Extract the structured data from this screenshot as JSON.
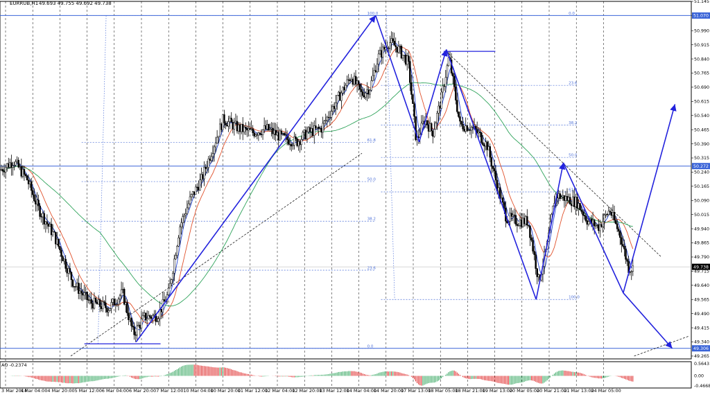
{
  "header": {
    "symbol": "EURRUB,H1",
    "quote": "49.693 49.755 49.692 49.738"
  },
  "osc": {
    "label": "AO -0.2374",
    "ticks": [
      {
        "label": "0.5643",
        "v": 0.5643
      },
      {
        "label": "0.00",
        "v": 0
      },
      {
        "label": "-0.4668",
        "v": -0.4668
      }
    ]
  },
  "colors": {
    "bg": "#ffffff",
    "candle": "#000000",
    "grid": "#000000",
    "ma_fast": "#1f3fcf",
    "ma_mid": "#e0502a",
    "ma_slow": "#2ea35a",
    "drawing": "#2222dd",
    "fib": "#4a6ed8",
    "level_box": "#3a64d8",
    "price_box": "#000000"
  },
  "chart_data": {
    "type": "candlestick",
    "symbol": "EURRUB",
    "timeframe": "H1",
    "ylim": [
      49.25,
      51.14
    ],
    "y_ticks": [
      51.145,
      51.07,
      50.99,
      50.915,
      50.84,
      50.765,
      50.69,
      50.615,
      50.54,
      50.465,
      50.39,
      50.315,
      50.24,
      50.165,
      50.09,
      50.015,
      49.94,
      49.865,
      49.79,
      49.715,
      49.64,
      49.565,
      49.49,
      49.415,
      49.34,
      49.265
    ],
    "x_ticks": [
      "3 Mar 2014",
      "4 Mar 04:00",
      "4 Mar 20:00",
      "5 Mar 12:00",
      "6 Mar 04:00",
      "6 Mar 20:00",
      "7 Mar 12:00",
      "10 Mar 04:00",
      "10 Mar 20:00",
      "11 Mar 12:00",
      "12 Mar 04:00",
      "12 Mar 20:00",
      "13 Mar 12:00",
      "14 Mar 04:00",
      "14 Mar 20:00",
      "17 Mar 13:00",
      "18 Mar 05:00",
      "18 Mar 21:00",
      "19 Mar 13:00",
      "20 Mar 05:00",
      "20 Mar 21:00",
      "21 Mar 13:00",
      "24 Mar 05:00"
    ],
    "last_price": 49.738,
    "highlighted_levels": [
      51.07,
      50.272,
      49.306
    ],
    "price_path": [
      {
        "x": 0,
        "y": 50.25
      },
      {
        "x": 0.5,
        "y": 50.3
      },
      {
        "x": 1,
        "y": 50.2
      },
      {
        "x": 1.4,
        "y": 50.05
      },
      {
        "x": 2,
        "y": 49.9
      },
      {
        "x": 2.7,
        "y": 49.65
      },
      {
        "x": 3.3,
        "y": 49.55
      },
      {
        "x": 4,
        "y": 49.52
      },
      {
        "x": 4.5,
        "y": 49.6
      },
      {
        "x": 4.9,
        "y": 49.38
      },
      {
        "x": 5.3,
        "y": 49.47
      },
      {
        "x": 5.8,
        "y": 49.48
      },
      {
        "x": 6.2,
        "y": 49.6
      },
      {
        "x": 6.6,
        "y": 49.95
      },
      {
        "x": 7,
        "y": 50.1
      },
      {
        "x": 7.4,
        "y": 50.2
      },
      {
        "x": 7.8,
        "y": 50.36
      },
      {
        "x": 8.2,
        "y": 50.52
      },
      {
        "x": 8.8,
        "y": 50.47
      },
      {
        "x": 9.3,
        "y": 50.45
      },
      {
        "x": 9.8,
        "y": 50.47
      },
      {
        "x": 10.4,
        "y": 50.42
      },
      {
        "x": 10.9,
        "y": 50.4
      },
      {
        "x": 11.3,
        "y": 50.45
      },
      {
        "x": 11.8,
        "y": 50.47
      },
      {
        "x": 12.3,
        "y": 50.6
      },
      {
        "x": 12.9,
        "y": 50.75
      },
      {
        "x": 13.3,
        "y": 50.65
      },
      {
        "x": 13.6,
        "y": 50.69
      },
      {
        "x": 13.9,
        "y": 50.85
      },
      {
        "x": 14.3,
        "y": 50.93
      },
      {
        "x": 14.6,
        "y": 50.9
      },
      {
        "x": 15,
        "y": 50.82
      },
      {
        "x": 15.3,
        "y": 50.4
      },
      {
        "x": 15.6,
        "y": 50.52
      },
      {
        "x": 15.9,
        "y": 50.45
      },
      {
        "x": 16.2,
        "y": 50.62
      },
      {
        "x": 16.5,
        "y": 50.85
      },
      {
        "x": 16.9,
        "y": 50.49
      },
      {
        "x": 17.3,
        "y": 50.48
      },
      {
        "x": 17.6,
        "y": 50.44
      },
      {
        "x": 17.9,
        "y": 50.38
      },
      {
        "x": 18.3,
        "y": 50.15
      },
      {
        "x": 18.6,
        "y": 50.0
      },
      {
        "x": 19,
        "y": 49.98
      },
      {
        "x": 19.4,
        "y": 49.98
      },
      {
        "x": 19.8,
        "y": 49.66
      },
      {
        "x": 20.1,
        "y": 49.85
      },
      {
        "x": 20.4,
        "y": 50.12
      },
      {
        "x": 20.8,
        "y": 50.1
      },
      {
        "x": 21.2,
        "y": 50.08
      },
      {
        "x": 21.6,
        "y": 49.98
      },
      {
        "x": 22,
        "y": 49.95
      },
      {
        "x": 22.4,
        "y": 50.04
      },
      {
        "x": 22.8,
        "y": 49.9
      },
      {
        "x": 23.1,
        "y": 49.73
      },
      {
        "x": 23.3,
        "y": 49.73
      }
    ],
    "series": [
      {
        "name": "fast",
        "kind": "ma_fast"
      },
      {
        "name": "mid",
        "kind": "ma_mid"
      },
      {
        "name": "slow",
        "kind": "ma_slow"
      }
    ],
    "fib_retracements": [
      {
        "x_start": 3,
        "x_end": 13.8,
        "from": 49.306,
        "to": 51.07,
        "levels": [
          {
            "label": "100.0",
            "v": 51.07
          },
          {
            "label": "61.8",
            "v": 50.397
          },
          {
            "label": "50.0",
            "v": 50.19
          },
          {
            "label": "38.2",
            "v": 49.98
          },
          {
            "label": "23.6",
            "v": 49.72
          },
          {
            "label": "0.0",
            "v": 49.306
          }
        ]
      },
      {
        "x_start": 14,
        "x_end": 21.2,
        "from": 49.565,
        "to": 51.07,
        "levels": [
          {
            "label": "0.0",
            "v": 51.07
          },
          {
            "label": "23.6",
            "v": 50.7
          },
          {
            "label": "38.2",
            "v": 50.49
          },
          {
            "label": "50.0",
            "v": 50.318
          },
          {
            "label": "61.8",
            "v": 50.135
          },
          {
            "label": "100.0",
            "v": 49.565
          }
        ]
      }
    ],
    "zigzag": [
      {
        "x": 5,
        "y": 49.34
      },
      {
        "x": 13.8,
        "y": 51.07
      },
      {
        "x": 15.4,
        "y": 50.4
      },
      {
        "x": 16.4,
        "y": 50.89
      },
      {
        "x": 19.7,
        "y": 49.565
      },
      {
        "x": 20.7,
        "y": 50.29
      },
      {
        "x": 22.9,
        "y": 49.6
      },
      {
        "x": 24.8,
        "y": 50.6
      }
    ],
    "forecast_down": [
      {
        "x": 22.9,
        "y": 49.6
      },
      {
        "x": 24.7,
        "y": 49.306
      }
    ],
    "hlines": [
      {
        "x1": 3.1,
        "x2": 5.9,
        "y": 49.33
      },
      {
        "x1": 16.3,
        "x2": 18.2,
        "y": 50.88
      }
    ],
    "trendlines": [
      {
        "x1": 2.6,
        "y1": 49.265,
        "x2": 13.3,
        "y2": 50.34
      },
      {
        "x1": 16.4,
        "y1": 50.88,
        "x2": 24.3,
        "y2": 49.79
      },
      {
        "x1": 23.3,
        "y1": 49.265,
        "x2": 25.3,
        "y2": 49.37
      }
    ],
    "vertical_lines": [
      {
        "x1": 3.6,
        "y1": 49.33,
        "x2": 3.9,
        "y2": 51.07
      },
      {
        "x1": 14.2,
        "y1": 51.07,
        "x2": 14.5,
        "y2": 49.565
      }
    ]
  }
}
